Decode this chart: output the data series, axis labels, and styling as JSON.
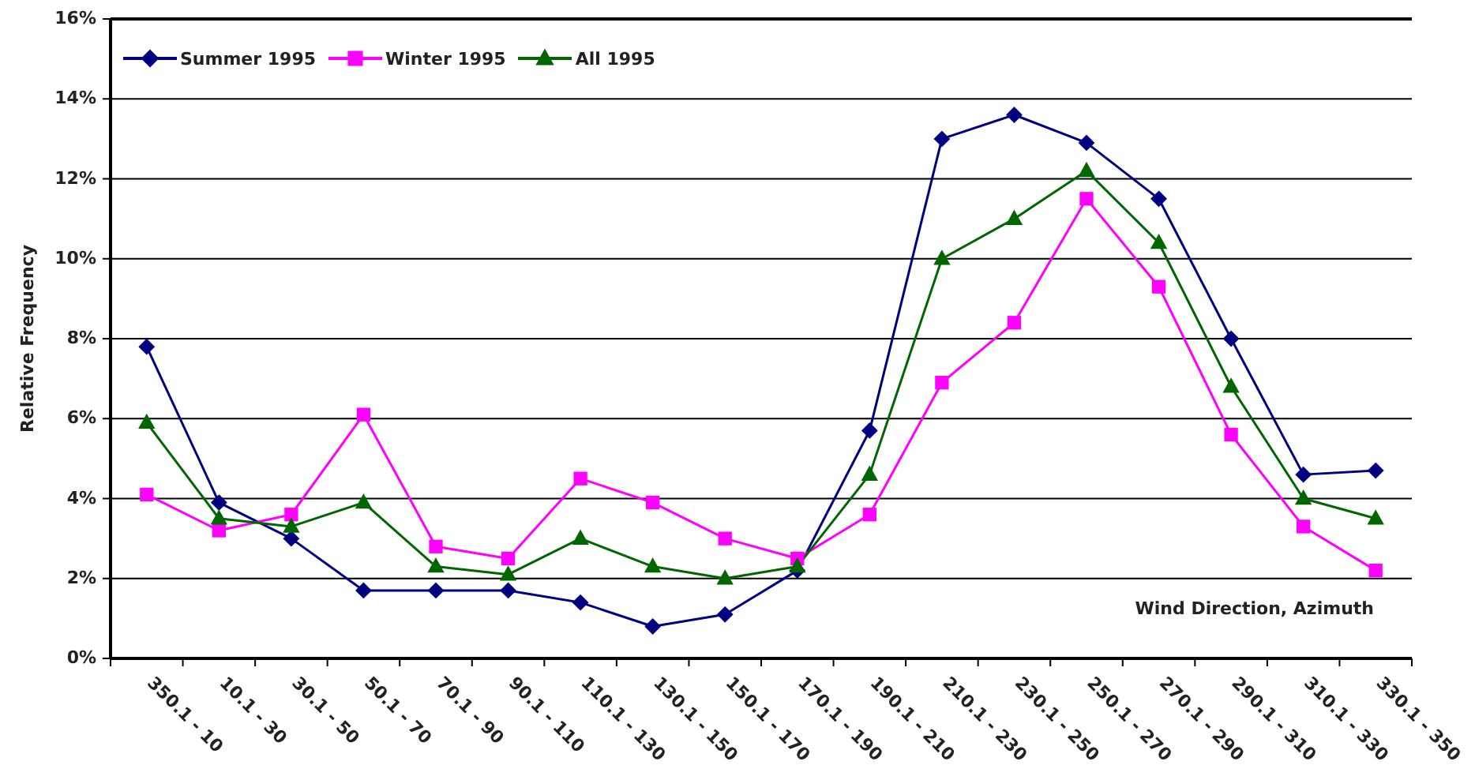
{
  "chart_data": {
    "type": "line",
    "xlabel": "Wind Direction, Azimuth",
    "ylabel": "Relative Frequency",
    "categories": [
      "350.1 - 10",
      "10.1 - 30",
      "30.1 - 50",
      "50.1 - 70",
      "70.1 - 90",
      "90.1 - 110",
      "110.1 - 130",
      "130.1 - 150",
      "150.1 - 170",
      "170.1 - 190",
      "190.1 - 210",
      "210.1 - 230",
      "230.1 - 250",
      "250.1 - 270",
      "270.1 - 290",
      "290.1 - 310",
      "310.1 - 330",
      "330.1 - 350"
    ],
    "series": [
      {
        "name": "Summer 1995",
        "color": "#000080",
        "marker": "diamond",
        "values": [
          7.8,
          3.9,
          3.0,
          1.7,
          1.7,
          1.7,
          1.4,
          0.8,
          1.1,
          2.2,
          5.7,
          13.0,
          13.6,
          12.9,
          11.5,
          8.0,
          4.6,
          4.7
        ]
      },
      {
        "name": "Winter 1995",
        "color": "#ff00ff",
        "marker": "square",
        "values": [
          4.1,
          3.2,
          3.6,
          6.1,
          2.8,
          2.5,
          4.5,
          3.9,
          3.0,
          2.5,
          3.6,
          6.9,
          8.4,
          11.5,
          9.3,
          5.6,
          3.3,
          2.2
        ]
      },
      {
        "name": "All 1995",
        "color": "#006600",
        "marker": "triangle",
        "values": [
          5.9,
          3.5,
          3.3,
          3.9,
          2.3,
          2.1,
          3.0,
          2.3,
          2.0,
          2.3,
          4.6,
          10.0,
          11.0,
          12.2,
          10.4,
          6.8,
          4.0,
          3.5
        ]
      }
    ],
    "ylim": [
      0,
      16
    ],
    "yticks": [
      {
        "value": 0,
        "label": "0%"
      },
      {
        "value": 2,
        "label": "2%"
      },
      {
        "value": 4,
        "label": "4%"
      },
      {
        "value": 6,
        "label": "6%"
      },
      {
        "value": 8,
        "label": "8%"
      },
      {
        "value": 10,
        "label": "10%"
      },
      {
        "value": 12,
        "label": "12%"
      },
      {
        "value": 14,
        "label": "14%"
      },
      {
        "value": 16,
        "label": "16%"
      }
    ],
    "grid": "y",
    "legend": "top left",
    "line_style": "solid"
  }
}
